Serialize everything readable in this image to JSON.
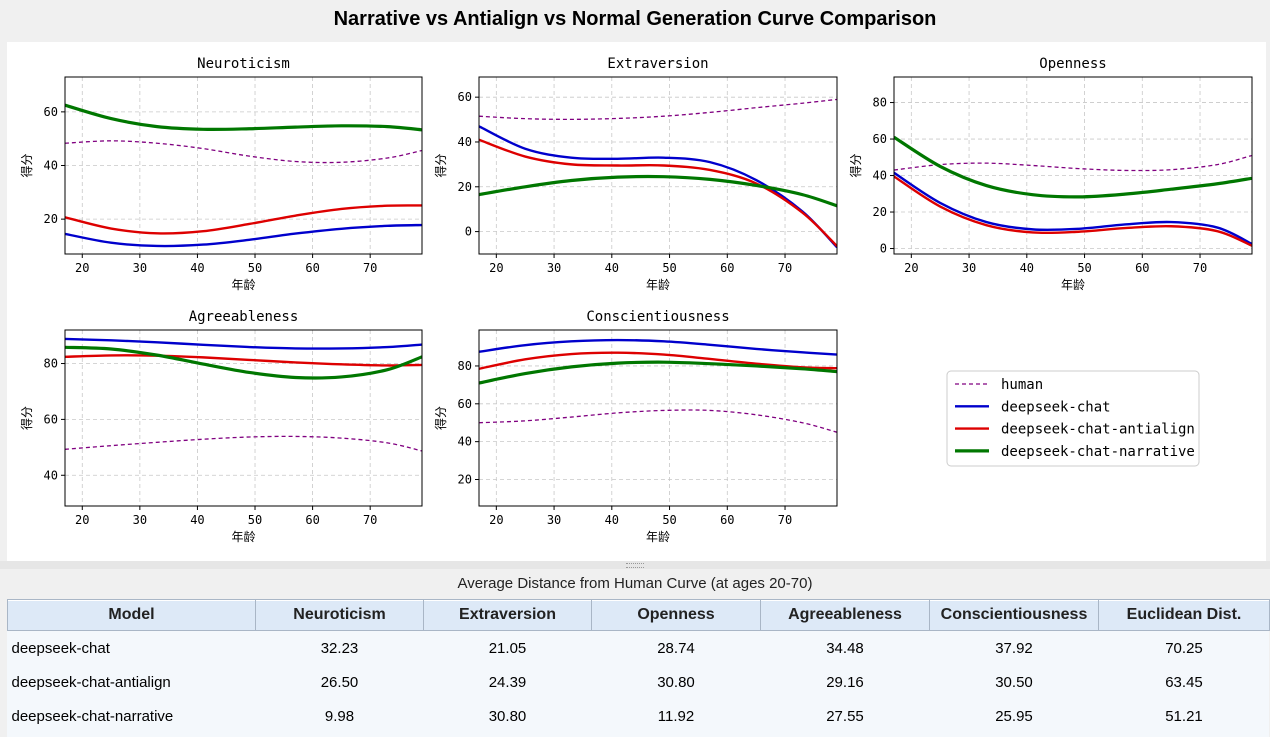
{
  "window_title": "Narrative vs Antialign vs Normal Generation Curve Comparison",
  "colors": {
    "human": "#800080",
    "deepseek-chat": "#0000cc",
    "deepseek-chat-antialign": "#dd0000",
    "deepseek-chat-narrative": "#007700"
  },
  "legend": {
    "items": [
      {
        "label": "human",
        "color": "#800080",
        "style": "dashed"
      },
      {
        "label": "deepseek-chat",
        "color": "#0000cc",
        "style": "solid"
      },
      {
        "label": "deepseek-chat-antialign",
        "color": "#dd0000",
        "style": "solid"
      },
      {
        "label": "deepseek-chat-narrative",
        "color": "#007700",
        "style": "solid"
      }
    ]
  },
  "chart_data": [
    {
      "type": "line",
      "title": "Neuroticism",
      "xlabel": "年龄",
      "ylabel": "得分",
      "xlim": [
        17,
        79
      ],
      "ylim": [
        7,
        73
      ],
      "xticks": [
        20,
        30,
        40,
        50,
        60,
        70
      ],
      "yticks": [
        20,
        40,
        60
      ],
      "x": [
        17,
        25,
        33,
        41,
        49,
        57,
        65,
        73,
        79
      ],
      "series": [
        {
          "name": "human",
          "values": [
            48.3,
            49.2,
            48.3,
            46.3,
            43.5,
            41.5,
            41.2,
            42.8,
            45.6
          ]
        },
        {
          "name": "deepseek-chat",
          "values": [
            14.5,
            11.2,
            10.0,
            10.5,
            12.3,
            14.6,
            16.4,
            17.5,
            17.8
          ]
        },
        {
          "name": "deepseek-chat-antialign",
          "values": [
            20.7,
            16.5,
            14.7,
            15.5,
            18.2,
            21.3,
            23.8,
            25.0,
            25.1
          ]
        },
        {
          "name": "deepseek-chat-narrative",
          "values": [
            62.5,
            57.5,
            54.5,
            53.5,
            53.7,
            54.3,
            54.8,
            54.5,
            53.3
          ]
        }
      ]
    },
    {
      "type": "line",
      "title": "Extraversion",
      "xlabel": "年龄",
      "ylabel": "得分",
      "xlim": [
        17,
        79
      ],
      "ylim": [
        -10,
        69
      ],
      "xticks": [
        20,
        30,
        40,
        50,
        60,
        70
      ],
      "yticks": [
        0,
        20,
        40,
        60
      ],
      "x": [
        17,
        25,
        33,
        41,
        49,
        57,
        65,
        73,
        79
      ],
      "series": [
        {
          "name": "human",
          "values": [
            51.5,
            50.4,
            50.1,
            50.5,
            51.5,
            53.2,
            55.3,
            57.3,
            59.0
          ]
        },
        {
          "name": "deepseek-chat",
          "values": [
            47.0,
            37.0,
            33.0,
            32.5,
            33.0,
            31.0,
            23.0,
            9.0,
            -7.0
          ]
        },
        {
          "name": "deepseek-chat-antialign",
          "values": [
            41.0,
            33.5,
            30.0,
            29.5,
            29.5,
            27.5,
            21.5,
            8.5,
            -6.5
          ]
        },
        {
          "name": "deepseek-chat-narrative",
          "values": [
            16.5,
            20.0,
            22.8,
            24.3,
            24.5,
            23.3,
            20.6,
            16.5,
            11.5
          ]
        }
      ]
    },
    {
      "type": "line",
      "title": "Openness",
      "xlabel": "年龄",
      "ylabel": "得分",
      "xlim": [
        17,
        79
      ],
      "ylim": [
        -3,
        94
      ],
      "xticks": [
        20,
        30,
        40,
        50,
        60,
        70
      ],
      "yticks": [
        0,
        20,
        40,
        60,
        80
      ],
      "x": [
        17,
        25,
        33,
        41,
        49,
        57,
        65,
        73,
        79
      ],
      "series": [
        {
          "name": "human",
          "values": [
            43.0,
            46.0,
            46.8,
            45.5,
            43.8,
            42.8,
            43.2,
            46.0,
            51.0
          ]
        },
        {
          "name": "deepseek-chat",
          "values": [
            41.5,
            25.0,
            14.5,
            10.5,
            10.8,
            13.2,
            14.5,
            11.5,
            2.5
          ]
        },
        {
          "name": "deepseek-chat-antialign",
          "values": [
            39.5,
            23.0,
            12.8,
            8.8,
            9.2,
            11.2,
            12.2,
            9.5,
            1.5
          ]
        },
        {
          "name": "deepseek-chat-narrative",
          "values": [
            61.0,
            45.0,
            34.5,
            29.5,
            28.3,
            29.8,
            32.5,
            35.5,
            38.5
          ]
        }
      ]
    },
    {
      "type": "line",
      "title": "Agreeableness",
      "xlabel": "年龄",
      "ylabel": "得分",
      "xlim": [
        17,
        79
      ],
      "ylim": [
        29,
        92
      ],
      "xticks": [
        20,
        30,
        40,
        50,
        60,
        70
      ],
      "yticks": [
        40,
        60,
        80
      ],
      "x": [
        17,
        25,
        33,
        41,
        49,
        57,
        65,
        73,
        79
      ],
      "series": [
        {
          "name": "human",
          "values": [
            49.3,
            50.6,
            51.8,
            52.9,
            53.7,
            53.9,
            53.3,
            51.6,
            48.7
          ]
        },
        {
          "name": "deepseek-chat",
          "values": [
            88.8,
            88.3,
            87.6,
            86.7,
            85.9,
            85.4,
            85.4,
            85.9,
            86.8
          ]
        },
        {
          "name": "deepseek-chat-antialign",
          "values": [
            82.4,
            82.9,
            82.8,
            82.2,
            81.3,
            80.4,
            79.7,
            79.3,
            79.5
          ]
        },
        {
          "name": "deepseek-chat-narrative",
          "values": [
            85.8,
            85.2,
            83.0,
            79.8,
            76.8,
            75.0,
            75.2,
            77.8,
            82.4
          ]
        }
      ]
    },
    {
      "type": "line",
      "title": "Conscientiousness",
      "xlabel": "年龄",
      "ylabel": "得分",
      "xlim": [
        17,
        79
      ],
      "ylim": [
        6,
        99
      ],
      "xticks": [
        20,
        30,
        40,
        50,
        60,
        70
      ],
      "yticks": [
        20,
        40,
        60,
        80
      ],
      "x": [
        17,
        25,
        33,
        41,
        49,
        57,
        65,
        73,
        79
      ],
      "series": [
        {
          "name": "human",
          "values": [
            50.0,
            51.0,
            53.0,
            55.2,
            56.5,
            56.5,
            54.2,
            50.0,
            45.0
          ]
        },
        {
          "name": "deepseek-chat",
          "values": [
            87.5,
            91.0,
            93.0,
            93.7,
            93.0,
            91.2,
            89.0,
            87.2,
            86.0
          ]
        },
        {
          "name": "deepseek-chat-antialign",
          "values": [
            78.5,
            83.5,
            86.3,
            87.0,
            86.0,
            83.7,
            81.2,
            79.3,
            78.8
          ]
        },
        {
          "name": "deepseek-chat-narrative",
          "values": [
            71.0,
            76.0,
            79.5,
            81.5,
            82.0,
            81.2,
            80.0,
            78.5,
            77.0
          ]
        }
      ]
    }
  ],
  "table": {
    "caption": "Average Distance from Human Curve (at ages 20-70)",
    "headers": [
      "Model",
      "Neuroticism",
      "Extraversion",
      "Openness",
      "Agreeableness",
      "Conscientiousness",
      "Euclidean Dist."
    ],
    "rows": [
      [
        "deepseek-chat",
        "32.23",
        "21.05",
        "28.74",
        "34.48",
        "37.92",
        "70.25"
      ],
      [
        "deepseek-chat-antialign",
        "26.50",
        "24.39",
        "30.80",
        "29.16",
        "30.50",
        "63.45"
      ],
      [
        "deepseek-chat-narrative",
        "9.98",
        "30.80",
        "11.92",
        "27.55",
        "25.95",
        "51.21"
      ]
    ]
  }
}
